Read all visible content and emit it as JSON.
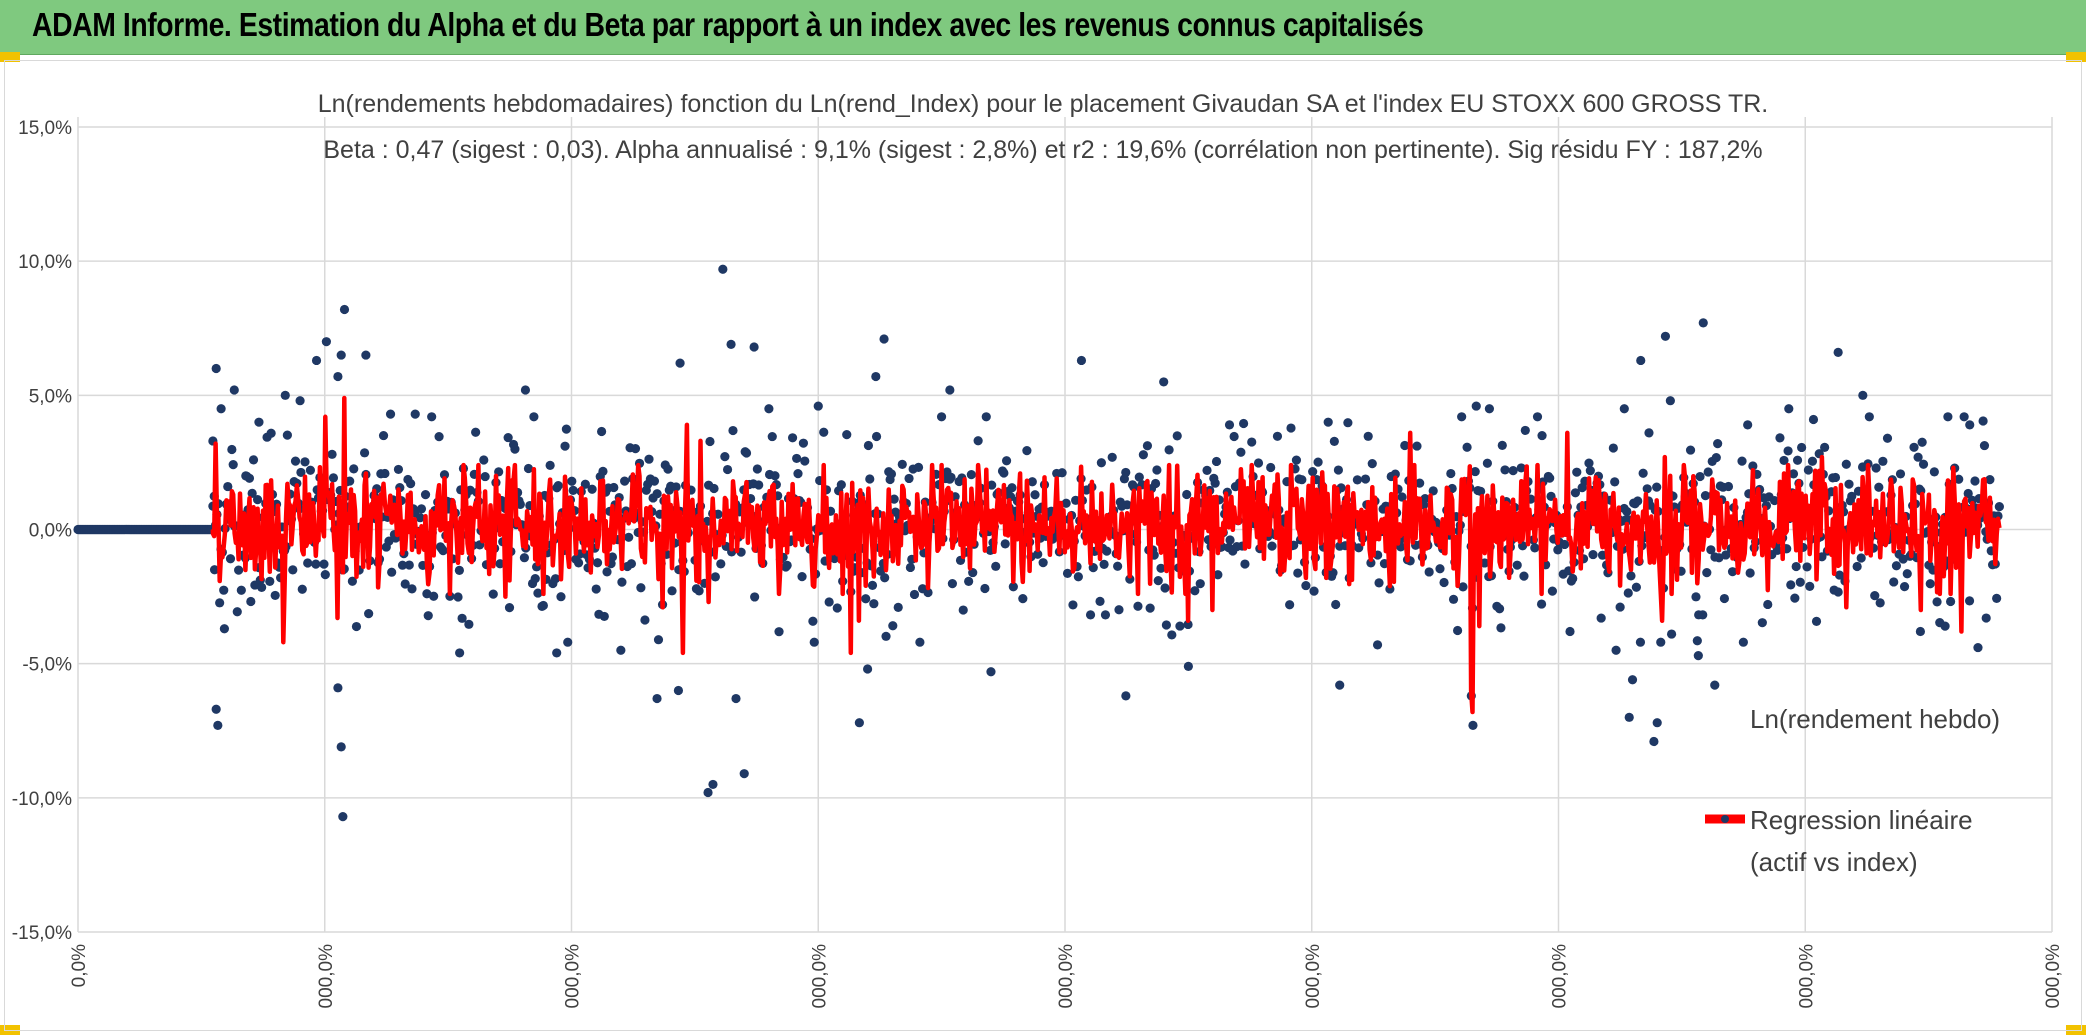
{
  "header": {
    "title": "ADAM Informe. Estimation du Alpha et du Beta par rapport à un index avec les revenus connus capitalisés"
  },
  "colors": {
    "header_bg": "#7fc97f",
    "scatter": "#1f3864",
    "regression": "#ff0000",
    "grid": "#d9d9d9",
    "accent_corner": "#f2c200"
  },
  "chart_data": {
    "type": "scatter",
    "title_line1": "Ln(rendements hebdomadaires) fonction du Ln(rend_Index) pour le placement Givaudan SA et l'index EU STOXX 600 GROSS TR.",
    "title_line2": "Beta : 0,47 (sigest : 0,03). Alpha annualisé : 9,1% (sigest : 2,8%) et r2 : 19,6% (corrélation non pertinente). Sig résidu FY : 187,2%",
    "y_axis": {
      "min": -15,
      "max": 15,
      "ticks": [
        15,
        10,
        5,
        0,
        -5,
        -10,
        -15
      ],
      "tick_labels": [
        "15,0%",
        "10,0%",
        "5,0%",
        "0,0%",
        "-5,0%",
        "-10,0%",
        "-15,0%"
      ]
    },
    "x_axis": {
      "tick_labels": [
        "0,0%",
        "000,0%",
        "000,0%",
        "000,0%",
        "000,0%",
        "000,0%",
        "000,0%",
        "000,0%",
        "000,0%"
      ]
    },
    "grid": true,
    "legend": {
      "placement": "right",
      "entries": [
        {
          "label": "Ln(rendement hebdo)",
          "kind": "marker"
        },
        {
          "label_line1": "Regression linéaire",
          "label_line2": "(actif vs index)",
          "kind": "line"
        }
      ]
    },
    "series": [
      {
        "name": "Ln(rendement hebdo)",
        "kind": "scatter",
        "n_zero_points": 190,
        "n_points": 1320,
        "spread_pct": 2.0,
        "notable_points": [
          [
            0.082,
            3.3
          ],
          [
            0.083,
            -1.5
          ],
          [
            0.084,
            6.0
          ],
          [
            0.084,
            -6.7
          ],
          [
            0.085,
            -7.3
          ],
          [
            0.087,
            4.5
          ],
          [
            0.089,
            -3.7
          ],
          [
            0.095,
            5.2
          ],
          [
            0.102,
            2.0
          ],
          [
            0.11,
            4.0
          ],
          [
            0.126,
            5.0
          ],
          [
            0.135,
            4.8
          ],
          [
            0.145,
            6.3
          ],
          [
            0.151,
            7.0
          ],
          [
            0.158,
            5.7
          ],
          [
            0.16,
            6.5
          ],
          [
            0.158,
            -5.9
          ],
          [
            0.16,
            -8.1
          ],
          [
            0.161,
            -10.7
          ],
          [
            0.162,
            8.2
          ],
          [
            0.175,
            6.5
          ],
          [
            0.19,
            4.3
          ],
          [
            0.205,
            4.3
          ],
          [
            0.215,
            4.2
          ],
          [
            0.232,
            -4.6
          ],
          [
            0.272,
            5.2
          ],
          [
            0.291,
            -4.6
          ],
          [
            0.33,
            -4.5
          ],
          [
            0.352,
            -6.3
          ],
          [
            0.365,
            -6.0
          ],
          [
            0.366,
            6.2
          ],
          [
            0.383,
            -9.8
          ],
          [
            0.386,
            -9.5
          ],
          [
            0.392,
            9.7
          ],
          [
            0.397,
            6.9
          ],
          [
            0.405,
            -9.1
          ],
          [
            0.411,
            6.8
          ],
          [
            0.4,
            -6.3
          ],
          [
            0.42,
            4.5
          ],
          [
            0.45,
            4.6
          ],
          [
            0.475,
            -7.2
          ],
          [
            0.48,
            -5.2
          ],
          [
            0.485,
            5.7
          ],
          [
            0.49,
            7.1
          ],
          [
            0.53,
            5.2
          ],
          [
            0.555,
            -5.3
          ],
          [
            0.61,
            6.3
          ],
          [
            0.637,
            -6.2
          ],
          [
            0.66,
            5.5
          ],
          [
            0.675,
            -5.1
          ],
          [
            0.7,
            3.9
          ],
          [
            0.76,
            4.0
          ],
          [
            0.767,
            -5.8
          ],
          [
            0.79,
            -4.3
          ],
          [
            0.847,
            -6.2
          ],
          [
            0.848,
            -7.3
          ],
          [
            0.85,
            4.6
          ],
          [
            0.858,
            4.5
          ],
          [
            0.89,
            3.5
          ],
          [
            0.935,
            -4.5
          ],
          [
            0.94,
            4.5
          ],
          [
            0.943,
            -7.0
          ],
          [
            0.945,
            -5.6
          ],
          [
            0.95,
            6.3
          ],
          [
            0.958,
            -7.9
          ],
          [
            0.96,
            -7.2
          ],
          [
            0.965,
            7.2
          ],
          [
            0.955,
            3.6
          ],
          [
            0.968,
            4.8
          ],
          [
            0.985,
            -4.7
          ],
          [
            0.988,
            7.7
          ],
          [
            0.995,
            -5.8
          ],
          [
            1.015,
            3.9
          ],
          [
            1.04,
            4.5
          ],
          [
            1.055,
            4.1
          ],
          [
            1.07,
            6.6
          ],
          [
            1.085,
            5.0
          ],
          [
            1.1,
            3.4
          ],
          [
            1.12,
            -3.8
          ],
          [
            1.135,
            -3.6
          ],
          [
            1.15,
            3.9
          ],
          [
            1.155,
            -4.4
          ],
          [
            1.16,
            -3.3
          ]
        ]
      },
      {
        "name": "Regression linéaire (actif vs index)",
        "kind": "line",
        "beta": 0.47,
        "intercept_pct": 0.17,
        "spikes": [
          [
            0.084,
            3.2
          ],
          [
            0.125,
            -4.2
          ],
          [
            0.15,
            -3.6
          ],
          [
            0.158,
            -3.3
          ],
          [
            0.162,
            4.9
          ],
          [
            0.15,
            4.2
          ],
          [
            0.26,
            -2.5
          ],
          [
            0.355,
            -2.9
          ],
          [
            0.368,
            -4.6
          ],
          [
            0.37,
            3.9
          ],
          [
            0.378,
            3.3
          ],
          [
            0.383,
            -2.7
          ],
          [
            0.47,
            -4.6
          ],
          [
            0.475,
            -3.4
          ],
          [
            0.675,
            -3.4
          ],
          [
            0.69,
            -3.0
          ],
          [
            0.81,
            3.6
          ],
          [
            0.847,
            -6.0
          ],
          [
            0.848,
            -6.8
          ],
          [
            0.852,
            -3.6
          ],
          [
            0.905,
            3.6
          ],
          [
            0.963,
            -3.4
          ],
          [
            0.965,
            2.7
          ],
          [
            1.06,
            2.7
          ],
          [
            1.075,
            -2.9
          ],
          [
            1.12,
            -3.0
          ],
          [
            1.14,
            2.3
          ],
          [
            1.145,
            -3.8
          ]
        ]
      }
    ]
  }
}
